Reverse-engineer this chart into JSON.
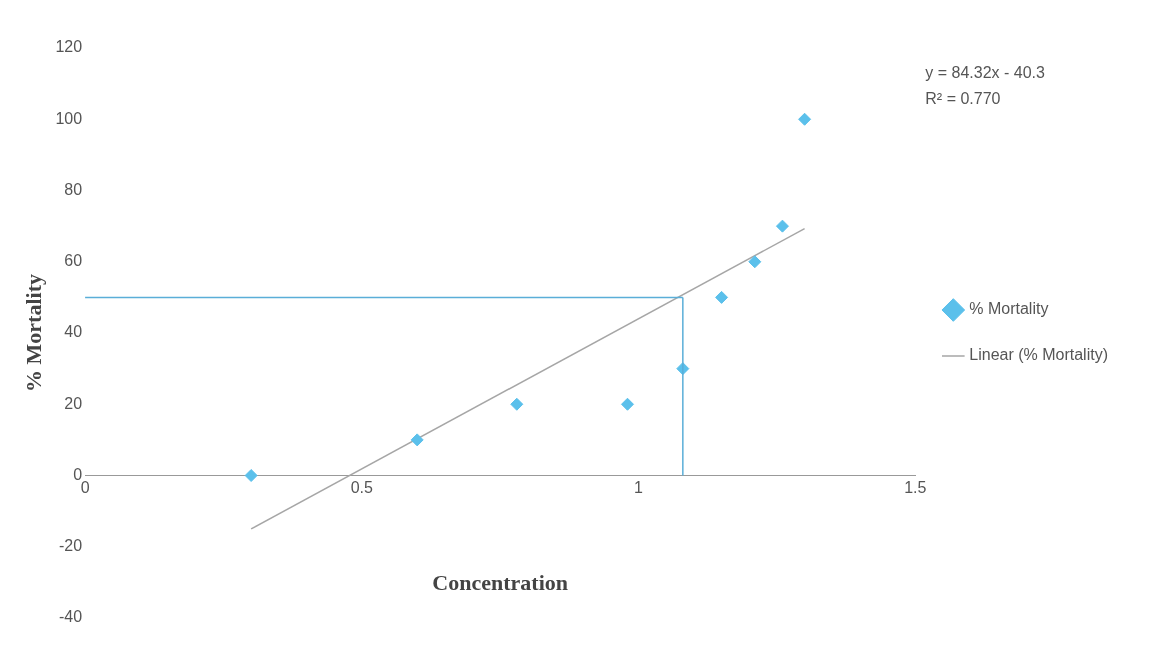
{
  "chart_data": {
    "type": "scatter",
    "xlabel": "Concentration",
    "ylabel": "% Mortality",
    "xlim": [
      0,
      1.5
    ],
    "xticks": [
      0,
      0.5,
      1,
      1.5
    ],
    "ylim": [
      -40,
      120
    ],
    "yticks": [
      -40,
      -20,
      0,
      20,
      40,
      60,
      80,
      100,
      120
    ],
    "series": [
      {
        "name": "% Mortality",
        "type": "scatter",
        "color": "#5bc0eb",
        "marker": "diamond",
        "x": [
          0.3,
          0.6,
          0.78,
          0.98,
          1.08,
          1.15,
          1.21,
          1.26,
          1.3
        ],
        "values": [
          0,
          10,
          20,
          20,
          30,
          50,
          60,
          70,
          100
        ]
      },
      {
        "name": "Linear (% Mortality)",
        "type": "line",
        "color": "#a6a6a6",
        "x": [
          0.3,
          1.3
        ],
        "values": [
          -15,
          69.3
        ]
      }
    ],
    "ref_lines": [
      {
        "axis": "y",
        "value": 50,
        "color": "#5aaed8"
      },
      {
        "axis": "x",
        "value": 1.08,
        "color": "#5aaed8"
      }
    ],
    "annotations": [
      "y = 84.32x - 40.3",
      "R² = 0.770"
    ],
    "legend": "right",
    "grid": false
  }
}
